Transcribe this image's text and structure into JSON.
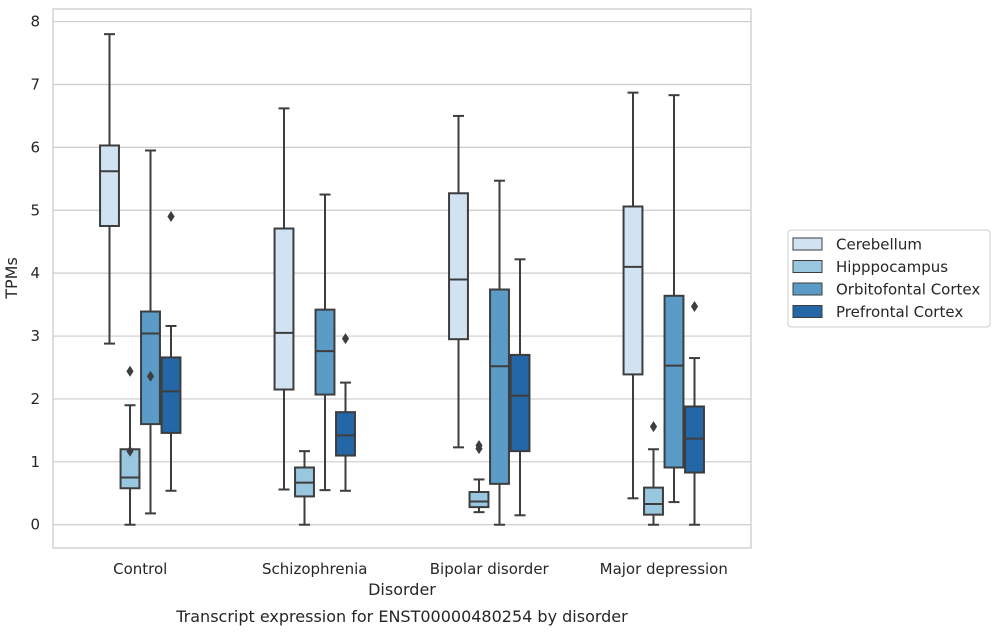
{
  "chart_data": {
    "type": "box",
    "caption": "Transcript expression for ENST00000480254 by disorder",
    "xlabel": "Disorder",
    "ylabel": "TPMs",
    "ylim": [
      -0.37,
      8.2
    ],
    "yticks": [
      0,
      1,
      2,
      3,
      4,
      5,
      6,
      7,
      8
    ],
    "grid": "horizontal",
    "legend_position": "right",
    "categories": [
      "Control",
      "Schizophrenia",
      "Bipolar disorder",
      "Major depression"
    ],
    "series": [
      {
        "name": "Cerebellum",
        "color": "#d1e2f2",
        "boxes": [
          {
            "min": 2.88,
            "q1": 4.75,
            "median": 5.62,
            "q3": 6.03,
            "max": 7.8,
            "outliers": []
          },
          {
            "min": 0.56,
            "q1": 2.15,
            "median": 3.05,
            "q3": 4.71,
            "max": 6.62,
            "outliers": []
          },
          {
            "min": 1.23,
            "q1": 2.95,
            "median": 3.9,
            "q3": 5.27,
            "max": 6.5,
            "outliers": []
          },
          {
            "min": 0.42,
            "q1": 2.39,
            "median": 4.1,
            "q3": 5.06,
            "max": 6.87,
            "outliers": []
          }
        ]
      },
      {
        "name": "Hipppocampus",
        "color": "#9ac7e0",
        "boxes": [
          {
            "min": 0.0,
            "q1": 0.58,
            "median": 0.75,
            "q3": 1.2,
            "max": 1.9,
            "outliers": [
              1.17,
              2.44
            ]
          },
          {
            "min": 0.0,
            "q1": 0.45,
            "median": 0.67,
            "q3": 0.91,
            "max": 1.17,
            "outliers": []
          },
          {
            "min": 0.2,
            "q1": 0.28,
            "median": 0.37,
            "q3": 0.52,
            "max": 0.72,
            "outliers": [
              1.21,
              1.26
            ]
          },
          {
            "min": 0.0,
            "q1": 0.16,
            "median": 0.33,
            "q3": 0.59,
            "max": 1.2,
            "outliers": [
              1.56
            ]
          }
        ]
      },
      {
        "name": "Orbitofontal Cortex",
        "color": "#5a9bc8",
        "boxes": [
          {
            "min": 0.18,
            "q1": 1.6,
            "median": 3.04,
            "q3": 3.39,
            "max": 5.95,
            "outliers": [
              2.36
            ]
          },
          {
            "min": 0.55,
            "q1": 2.07,
            "median": 2.76,
            "q3": 3.42,
            "max": 5.25,
            "outliers": []
          },
          {
            "min": 0.0,
            "q1": 0.65,
            "median": 2.52,
            "q3": 3.74,
            "max": 5.47,
            "outliers": []
          },
          {
            "min": 0.36,
            "q1": 0.91,
            "median": 2.53,
            "q3": 3.64,
            "max": 6.83,
            "outliers": []
          }
        ]
      },
      {
        "name": "Prefrontal Cortex",
        "color": "#2467a7",
        "boxes": [
          {
            "min": 0.54,
            "q1": 1.46,
            "median": 2.12,
            "q3": 2.66,
            "max": 3.16,
            "outliers": [
              4.9
            ]
          },
          {
            "min": 0.54,
            "q1": 1.1,
            "median": 1.42,
            "q3": 1.79,
            "max": 2.26,
            "outliers": [
              2.96
            ]
          },
          {
            "min": 0.15,
            "q1": 1.17,
            "median": 2.05,
            "q3": 2.7,
            "max": 4.22,
            "outliers": []
          },
          {
            "min": 0.0,
            "q1": 0.83,
            "median": 1.37,
            "q3": 1.88,
            "max": 2.65,
            "outliers": [
              3.47
            ]
          }
        ]
      }
    ]
  }
}
